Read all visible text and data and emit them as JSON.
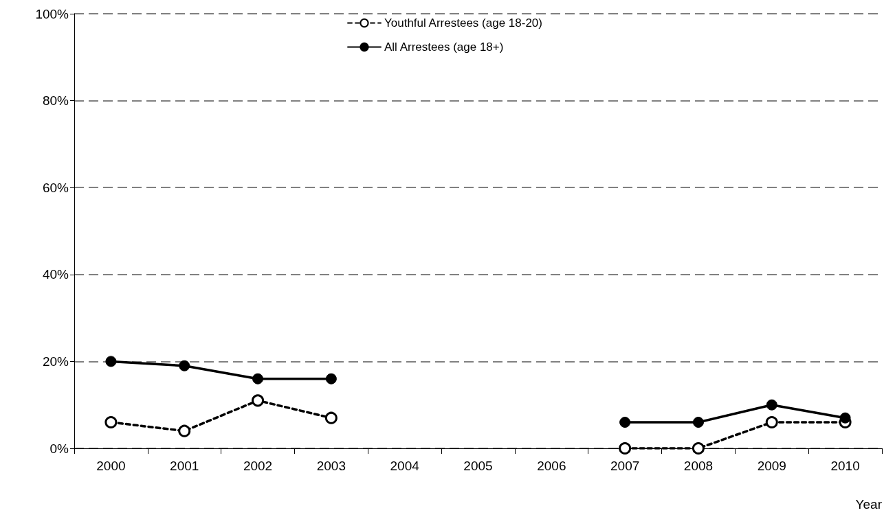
{
  "chart_data": {
    "type": "line",
    "xlabel": "Year",
    "categories": [
      "2000",
      "2001",
      "2002",
      "2003",
      "2004",
      "2005",
      "2006",
      "2007",
      "2008",
      "2009",
      "2010"
    ],
    "series": [
      {
        "name": "Youthful Arrestees (age 18-20)",
        "color": "#000000",
        "line_style": "dashed",
        "values": [
          6,
          4,
          11,
          7,
          null,
          null,
          null,
          0,
          0,
          6,
          6
        ]
      },
      {
        "name": "All Arrestees (age 18+)",
        "color": "#000000",
        "line_style": "solid",
        "values": [
          20,
          19,
          16,
          16,
          null,
          null,
          null,
          6,
          6,
          10,
          7
        ]
      }
    ],
    "ylim": [
      0,
      100
    ],
    "yticks": [
      {
        "value": 0,
        "label": "0%"
      },
      {
        "value": 20,
        "label": "20%"
      },
      {
        "value": 40,
        "label": "40%"
      },
      {
        "value": 60,
        "label": "60%"
      },
      {
        "value": 80,
        "label": "80%"
      },
      {
        "value": 100,
        "label": "100%"
      }
    ],
    "grid": "y",
    "legend": "top",
    "marker": "circle"
  }
}
